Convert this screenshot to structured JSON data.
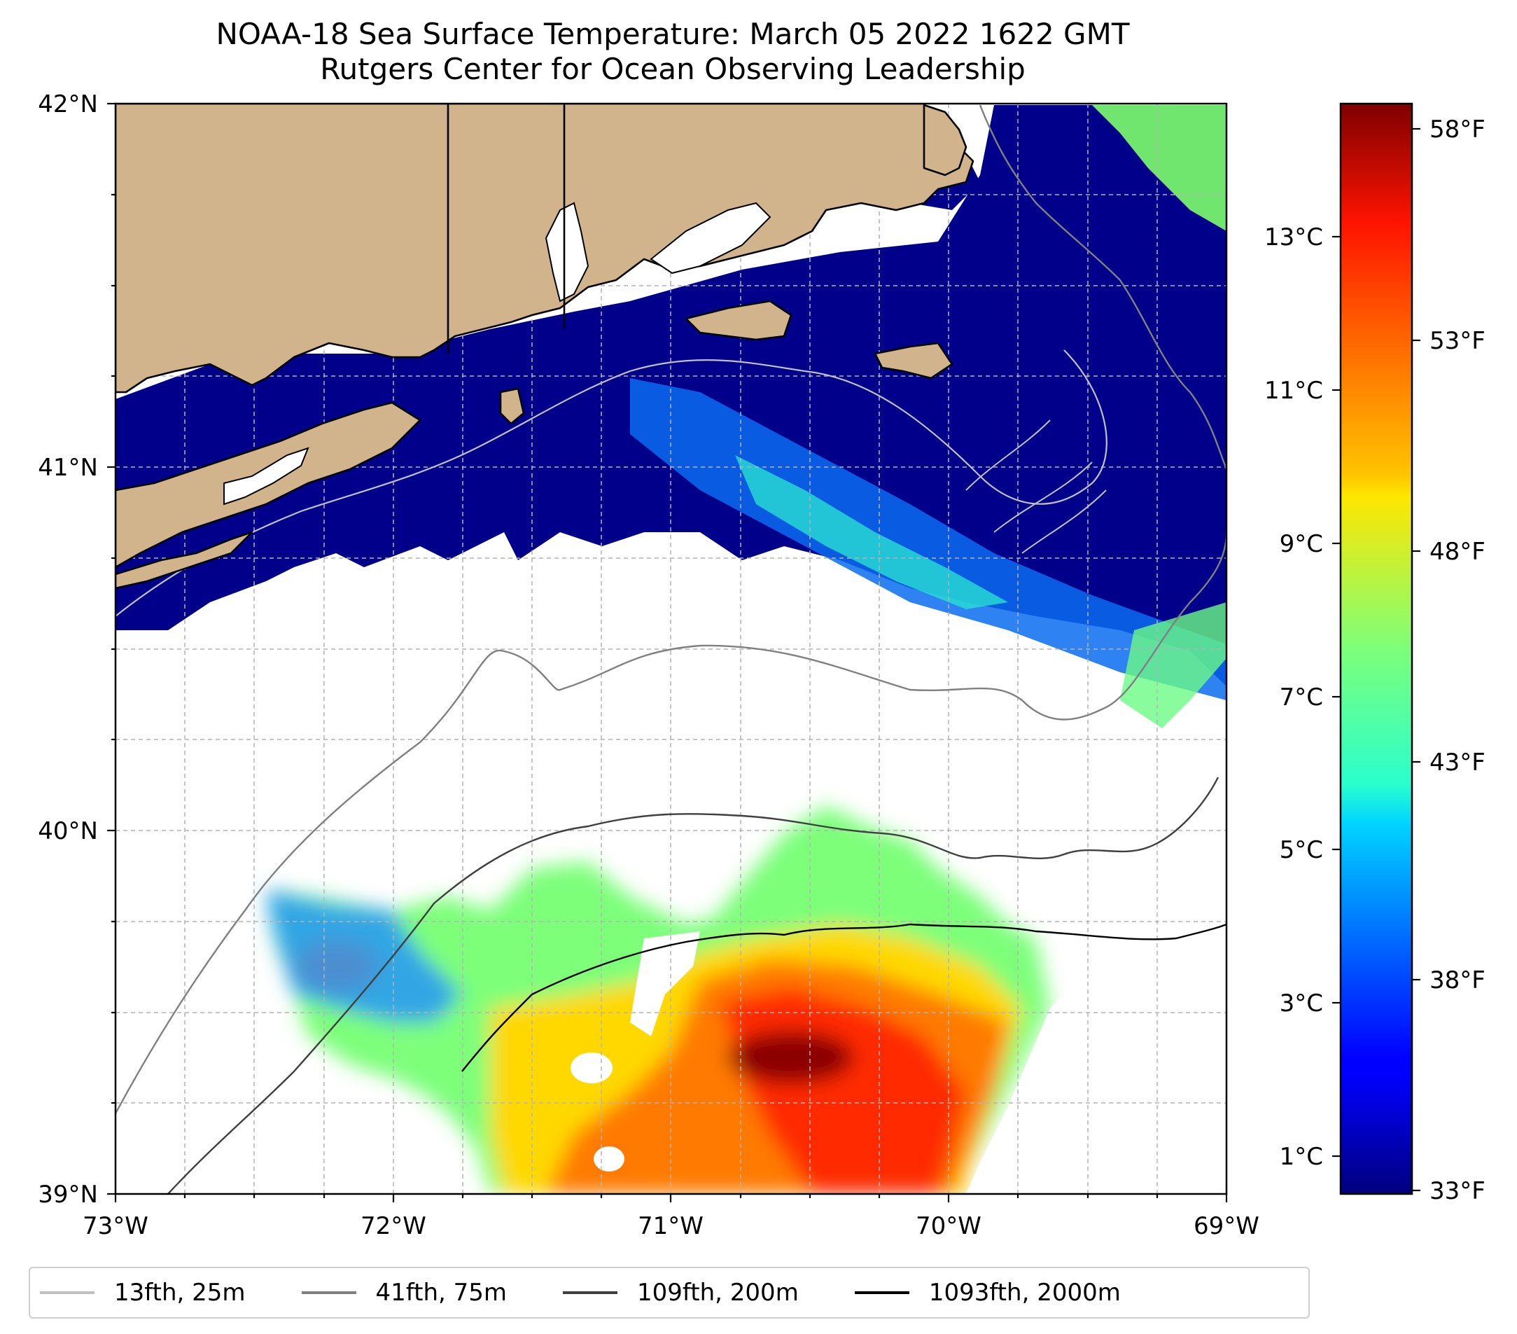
{
  "title": {
    "line1": "NOAA-18 Sea Surface Temperature: March 05 2022 1622 GMT",
    "line2": "Rutgers Center for Ocean Observing Leadership"
  },
  "map": {
    "lon_range": [
      -73,
      -69
    ],
    "lat_range": [
      39,
      42
    ],
    "x_ticks": [
      "73°W",
      "72°W",
      "71°W",
      "70°W",
      "69°W"
    ],
    "y_ticks": [
      "42°N",
      "41°N",
      "40°N",
      "39°N"
    ],
    "gridlines": true,
    "land_color": "#d2b48c",
    "no_data_color": "#ffffff"
  },
  "colorbar": {
    "colormap": "jet",
    "celsius_ticks": [
      "13°C",
      "11°C",
      "9°C",
      "7°C",
      "5°C",
      "3°C",
      "1°C"
    ],
    "fahrenheit_ticks": [
      "58°F",
      "53°F",
      "48°F",
      "43°F",
      "38°F",
      "33°F"
    ]
  },
  "legend": [
    {
      "label": "13fth, 25m",
      "color": "#c0c0c0"
    },
    {
      "label": "41fth, 75m",
      "color": "#808080"
    },
    {
      "label": "109fth, 200m",
      "color": "#404040"
    },
    {
      "label": "1093fth, 2000m",
      "color": "#000000"
    }
  ]
}
